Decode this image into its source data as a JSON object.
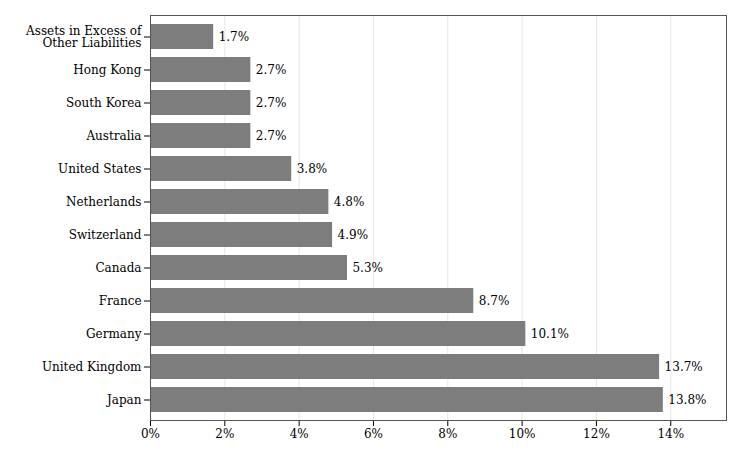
{
  "chart_data": {
    "type": "bar",
    "orientation": "horizontal",
    "categories": [
      "Assets in Excess of\nOther Liabilities",
      "Hong Kong",
      "South Korea",
      "Australia",
      "United States",
      "Netherlands",
      "Switzerland",
      "Canada",
      "France",
      "Germany",
      "United Kingdom",
      "Japan"
    ],
    "values": [
      1.7,
      2.7,
      2.7,
      2.7,
      3.8,
      4.8,
      4.9,
      5.3,
      8.7,
      10.1,
      13.7,
      13.8
    ],
    "value_labels": [
      "1.7%",
      "2.7%",
      "2.7%",
      "2.7%",
      "3.8%",
      "4.8%",
      "4.9%",
      "5.3%",
      "8.7%",
      "10.1%",
      "13.7%",
      "13.8%"
    ],
    "data_labels": true,
    "color": "#7d7d7d",
    "xlim": [
      0,
      15.5
    ],
    "xticks": [
      {
        "value": 0,
        "label": "0%"
      },
      {
        "value": 2,
        "label": "2%"
      },
      {
        "value": 4,
        "label": "4%"
      },
      {
        "value": 6,
        "label": "6%"
      },
      {
        "value": 8,
        "label": "8%"
      },
      {
        "value": 10,
        "label": "10%"
      },
      {
        "value": 12,
        "label": "12%"
      },
      {
        "value": 14,
        "label": "14%"
      }
    ],
    "grid": true
  }
}
